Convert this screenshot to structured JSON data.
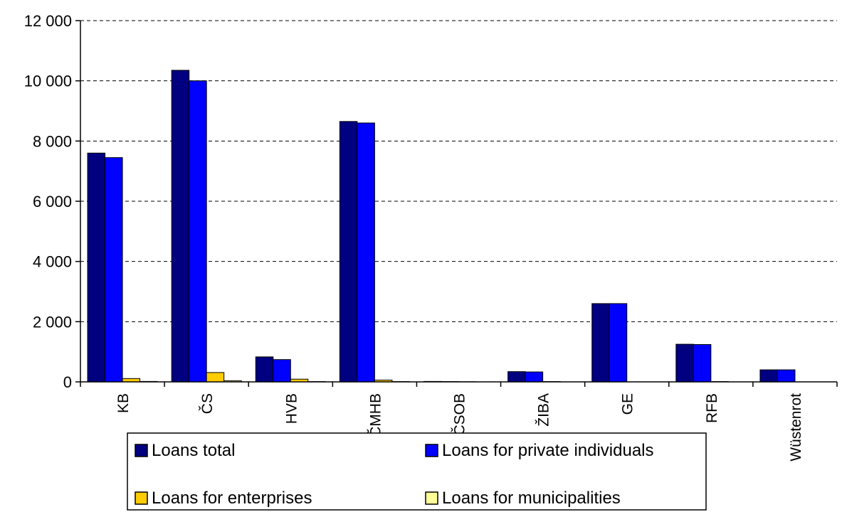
{
  "chart_data": {
    "type": "bar",
    "categories": [
      "KB",
      "ČS",
      "HVB",
      "ČMHB",
      "ČSOB",
      "ŽIBA",
      "GE",
      "RFB",
      "Wüstenrot"
    ],
    "ylim": [
      0,
      12000
    ],
    "yticks": [
      0,
      2000,
      4000,
      6000,
      8000,
      10000,
      12000
    ],
    "ytick_labels": [
      "0",
      "2 000",
      "4 000",
      "6 000",
      "8 000",
      "10 000",
      "12 000"
    ],
    "grid": "horizontal dashed",
    "legend_position": "bottom",
    "series": [
      {
        "name": "Loans total",
        "color": "#000080",
        "values": [
          7600,
          10350,
          830,
          8650,
          15,
          340,
          2600,
          1250,
          400
        ]
      },
      {
        "name": "Loans for private individuals",
        "color": "#0000ff",
        "values": [
          7450,
          10000,
          740,
          8600,
          10,
          330,
          2600,
          1240,
          400
        ]
      },
      {
        "name": "Loans for enterprises",
        "color": "#ffcc00",
        "values": [
          110,
          310,
          90,
          60,
          5,
          10,
          0,
          10,
          0
        ]
      },
      {
        "name": "Loans for municipalities",
        "color": "#ffff99",
        "values": [
          15,
          40,
          10,
          10,
          0,
          0,
          0,
          0,
          0
        ]
      }
    ]
  }
}
